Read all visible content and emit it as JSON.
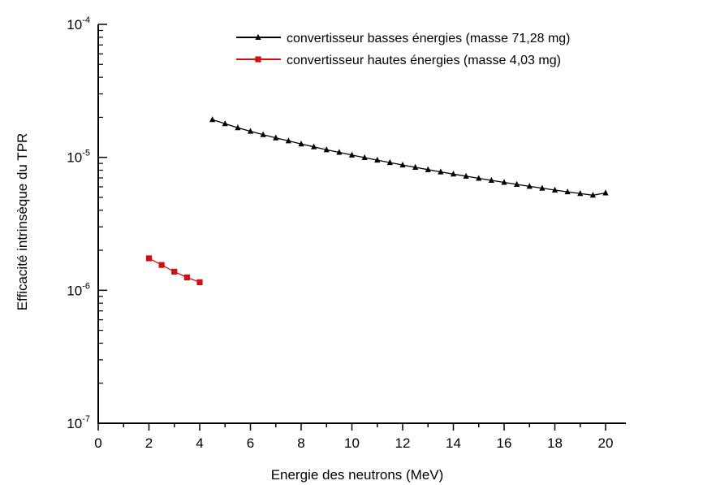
{
  "chart_data": {
    "type": "line",
    "xlabel": "Energie des neutrons (MeV)",
    "ylabel": "Efficacité intrinsèque du TPR",
    "xlim": [
      0,
      20.8
    ],
    "ylim": [
      1e-07,
      0.0001
    ],
    "yscale": "log",
    "x_ticks": [
      "0",
      "2",
      "4",
      "6",
      "8",
      "10",
      "12",
      "14",
      "16",
      "18",
      "20"
    ],
    "y_ticks": [
      {
        "base": "10",
        "exp": "-7"
      },
      {
        "base": "10",
        "exp": "-6"
      },
      {
        "base": "10",
        "exp": "-5"
      },
      {
        "base": "10",
        "exp": "-4"
      }
    ],
    "grid": false,
    "legend_position": "top-right",
    "series": [
      {
        "name": "convertisseur basses énergies (masse 71,28 mg)",
        "color": "#000000",
        "marker": "triangle",
        "x": [
          4.5,
          5.0,
          5.5,
          6.0,
          6.5,
          7.0,
          7.5,
          8.0,
          8.5,
          9.0,
          9.5,
          10.0,
          10.5,
          11.0,
          11.5,
          12.0,
          12.5,
          13.0,
          13.5,
          14.0,
          14.5,
          15.0,
          15.5,
          16.0,
          16.5,
          17.0,
          17.5,
          18.0,
          18.5,
          19.0,
          19.5,
          20.0
        ],
        "y": [
          1.92e-05,
          1.79e-05,
          1.67e-05,
          1.57e-05,
          1.48e-05,
          1.4e-05,
          1.33e-05,
          1.26e-05,
          1.2e-05,
          1.14e-05,
          1.09e-05,
          1.04e-05,
          9.95e-06,
          9.53e-06,
          9.13e-06,
          8.76e-06,
          8.41e-06,
          8.08e-06,
          7.77e-06,
          7.48e-06,
          7.21e-06,
          6.95e-06,
          6.71e-06,
          6.48e-06,
          6.26e-06,
          6.05e-06,
          5.86e-06,
          5.67e-06,
          5.5e-06,
          5.34e-06,
          5.19e-06,
          5.4e-06
        ]
      },
      {
        "name": "convertisseur hautes énergies (masse 4,03 mg)",
        "color": "#d01010",
        "marker": "square",
        "x": [
          2.0,
          2.5,
          3.0,
          3.5,
          4.0
        ],
        "y": [
          1.74e-06,
          1.55e-06,
          1.38e-06,
          1.25e-06,
          1.15e-06
        ]
      }
    ]
  }
}
